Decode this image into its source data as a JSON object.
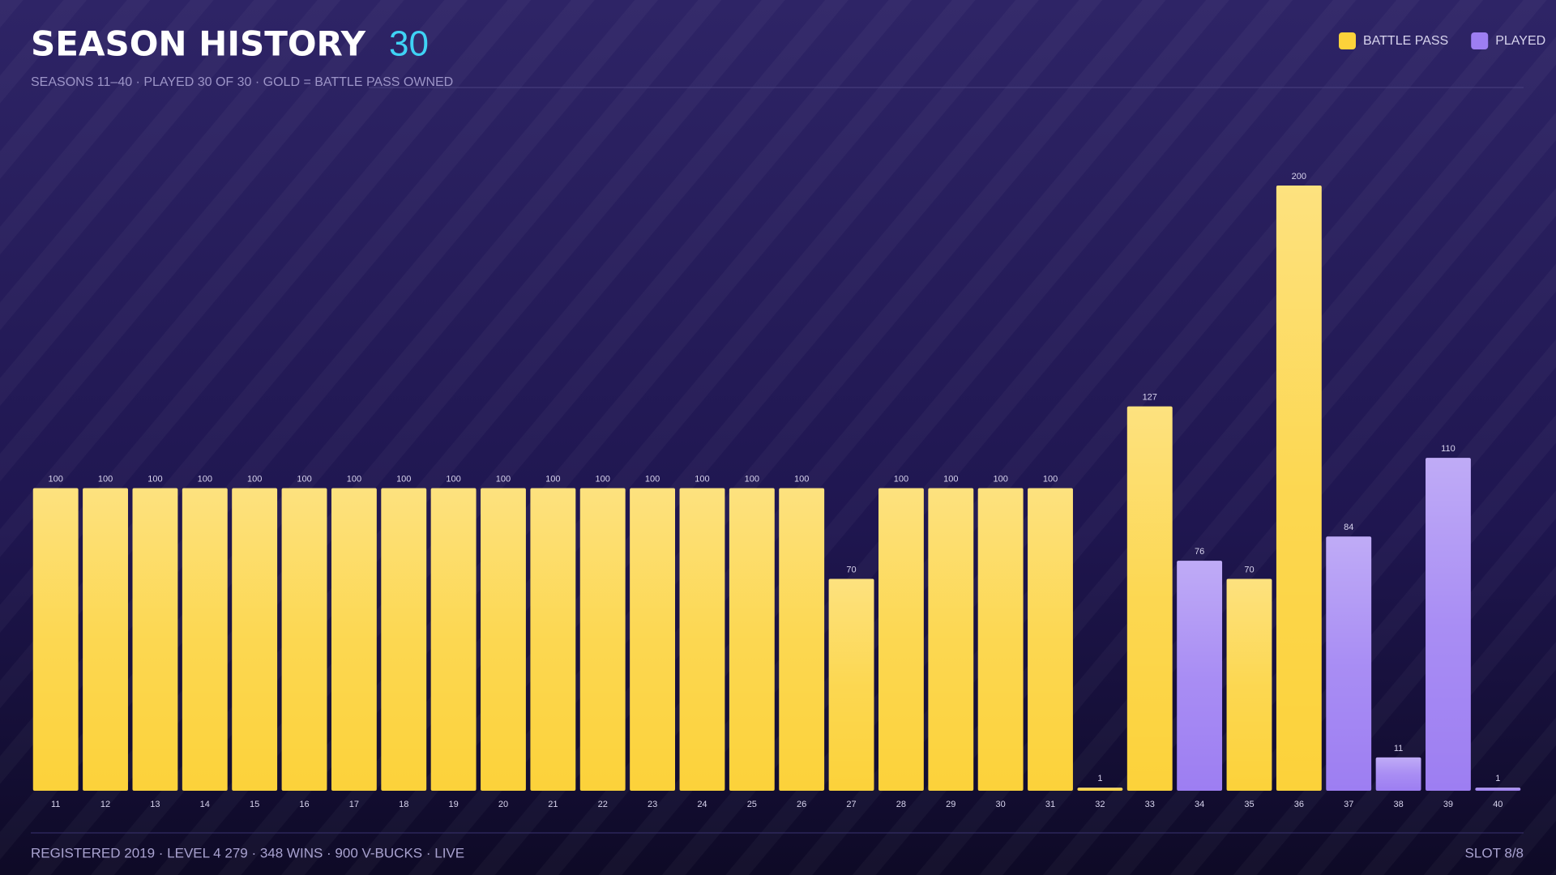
{
  "chart_data": {
    "type": "bar",
    "title": "SEASON HISTORY",
    "title_value": 30,
    "subtitle": "SEASONS 11–40 · PLAYED 30 OF 30 · GOLD = BATTLE PASS OWNED",
    "categories": [
      "11",
      "12",
      "13",
      "14",
      "15",
      "16",
      "17",
      "18",
      "19",
      "20",
      "21",
      "22",
      "23",
      "24",
      "25",
      "26",
      "27",
      "28",
      "29",
      "30",
      "31",
      "32",
      "33",
      "34",
      "35",
      "36",
      "37",
      "38",
      "39",
      "40"
    ],
    "series": [
      {
        "name": "BATTLE PASS",
        "color": "#fcd23a",
        "values": [
          100,
          100,
          100,
          100,
          100,
          100,
          100,
          100,
          100,
          100,
          100,
          100,
          100,
          100,
          100,
          100,
          70,
          100,
          100,
          100,
          100,
          1,
          127,
          null,
          70,
          200,
          null,
          null,
          null,
          null
        ]
      },
      {
        "name": "PLAYED",
        "color": "#9d7ef2",
        "values": [
          null,
          null,
          null,
          null,
          null,
          null,
          null,
          null,
          null,
          null,
          null,
          null,
          null,
          null,
          null,
          null,
          null,
          null,
          null,
          null,
          null,
          null,
          null,
          76,
          null,
          null,
          84,
          11,
          110,
          1
        ]
      }
    ],
    "ylim": [
      0,
      200
    ],
    "legend": "top-right"
  },
  "footer": {
    "left": "REGISTERED 2019 · LEVEL 4 279 · 348 WINS · 900 V-BUCKS · LIVE",
    "right": "SLOT 8/8"
  }
}
